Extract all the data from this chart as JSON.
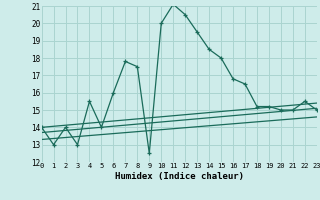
{
  "title": "",
  "xlabel": "Humidex (Indice chaleur)",
  "bg_color": "#ceecea",
  "grid_color": "#aad4d0",
  "line_color": "#1a6b5a",
  "xmin": 0,
  "xmax": 23,
  "ymin": 12,
  "ymax": 21,
  "main_series": [
    0,
    1,
    2,
    3,
    4,
    5,
    6,
    7,
    8,
    9,
    10,
    11,
    12,
    13,
    14,
    15,
    16,
    17,
    18,
    19,
    20,
    21,
    22,
    23
  ],
  "main_values": [
    14,
    13,
    14,
    13,
    15.5,
    14,
    16,
    17.8,
    17.5,
    12.5,
    20,
    21.1,
    20.5,
    19.5,
    18.5,
    18,
    16.8,
    16.5,
    15.2,
    15.2,
    15,
    15,
    15.5,
    15
  ],
  "line1_x": [
    0,
    23
  ],
  "line1_y": [
    14.0,
    15.4
  ],
  "line2_x": [
    0,
    23
  ],
  "line2_y": [
    13.7,
    15.1
  ],
  "line3_x": [
    0,
    23
  ],
  "line3_y": [
    13.3,
    14.6
  ]
}
